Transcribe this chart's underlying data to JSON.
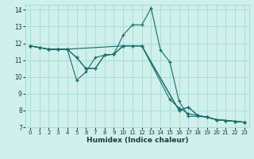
{
  "background_color": "#cff0eb",
  "grid_color": "#aaddda",
  "line_color": "#1a6b6b",
  "xlabel": "Humidex (Indice chaleur)",
  "xlim": [
    -0.5,
    23.5
  ],
  "ylim": [
    7,
    14.3
  ],
  "xticks": [
    0,
    1,
    2,
    3,
    4,
    5,
    6,
    7,
    8,
    9,
    10,
    11,
    12,
    13,
    14,
    15,
    16,
    17,
    18,
    19,
    20,
    21,
    22,
    23
  ],
  "yticks": [
    7,
    8,
    9,
    10,
    11,
    12,
    13,
    14
  ],
  "series": [
    {
      "x": [
        0,
        1,
        2,
        3,
        4,
        5,
        6,
        7,
        8,
        9,
        10,
        11,
        12,
        13,
        14,
        15,
        16,
        17,
        18,
        19,
        20,
        21,
        22,
        23
      ],
      "y": [
        11.85,
        11.75,
        11.65,
        11.65,
        11.65,
        9.8,
        10.3,
        11.15,
        11.3,
        11.35,
        12.5,
        13.1,
        13.1,
        14.1,
        11.6,
        10.9,
        8.55,
        7.65,
        7.65,
        7.6,
        7.45,
        7.4,
        7.35,
        7.3
      ]
    },
    {
      "x": [
        0,
        1,
        2,
        3,
        4,
        5,
        6,
        7,
        8,
        9,
        10,
        11,
        12,
        15,
        16,
        17,
        18,
        19,
        20,
        21,
        22,
        23
      ],
      "y": [
        11.85,
        11.75,
        11.65,
        11.65,
        11.65,
        11.15,
        10.5,
        10.5,
        11.3,
        11.35,
        11.85,
        11.85,
        11.85,
        8.65,
        8.15,
        7.8,
        7.7,
        7.6,
        7.45,
        7.4,
        7.35,
        7.3
      ]
    },
    {
      "x": [
        0,
        1,
        2,
        3,
        4,
        5,
        6,
        7,
        8,
        9,
        10,
        11,
        12,
        16,
        17,
        18,
        19,
        20,
        21,
        22,
        23
      ],
      "y": [
        11.85,
        11.75,
        11.65,
        11.65,
        11.65,
        11.15,
        10.5,
        10.5,
        11.3,
        11.35,
        11.85,
        11.85,
        11.85,
        8.0,
        8.2,
        7.7,
        7.6,
        7.45,
        7.4,
        7.35,
        7.3
      ]
    },
    {
      "x": [
        0,
        2,
        3,
        4,
        10,
        12,
        16,
        17,
        18,
        19,
        20,
        21,
        22,
        23
      ],
      "y": [
        11.85,
        11.65,
        11.65,
        11.65,
        11.85,
        11.85,
        8.0,
        8.2,
        7.7,
        7.6,
        7.45,
        7.4,
        7.35,
        7.3
      ]
    }
  ]
}
